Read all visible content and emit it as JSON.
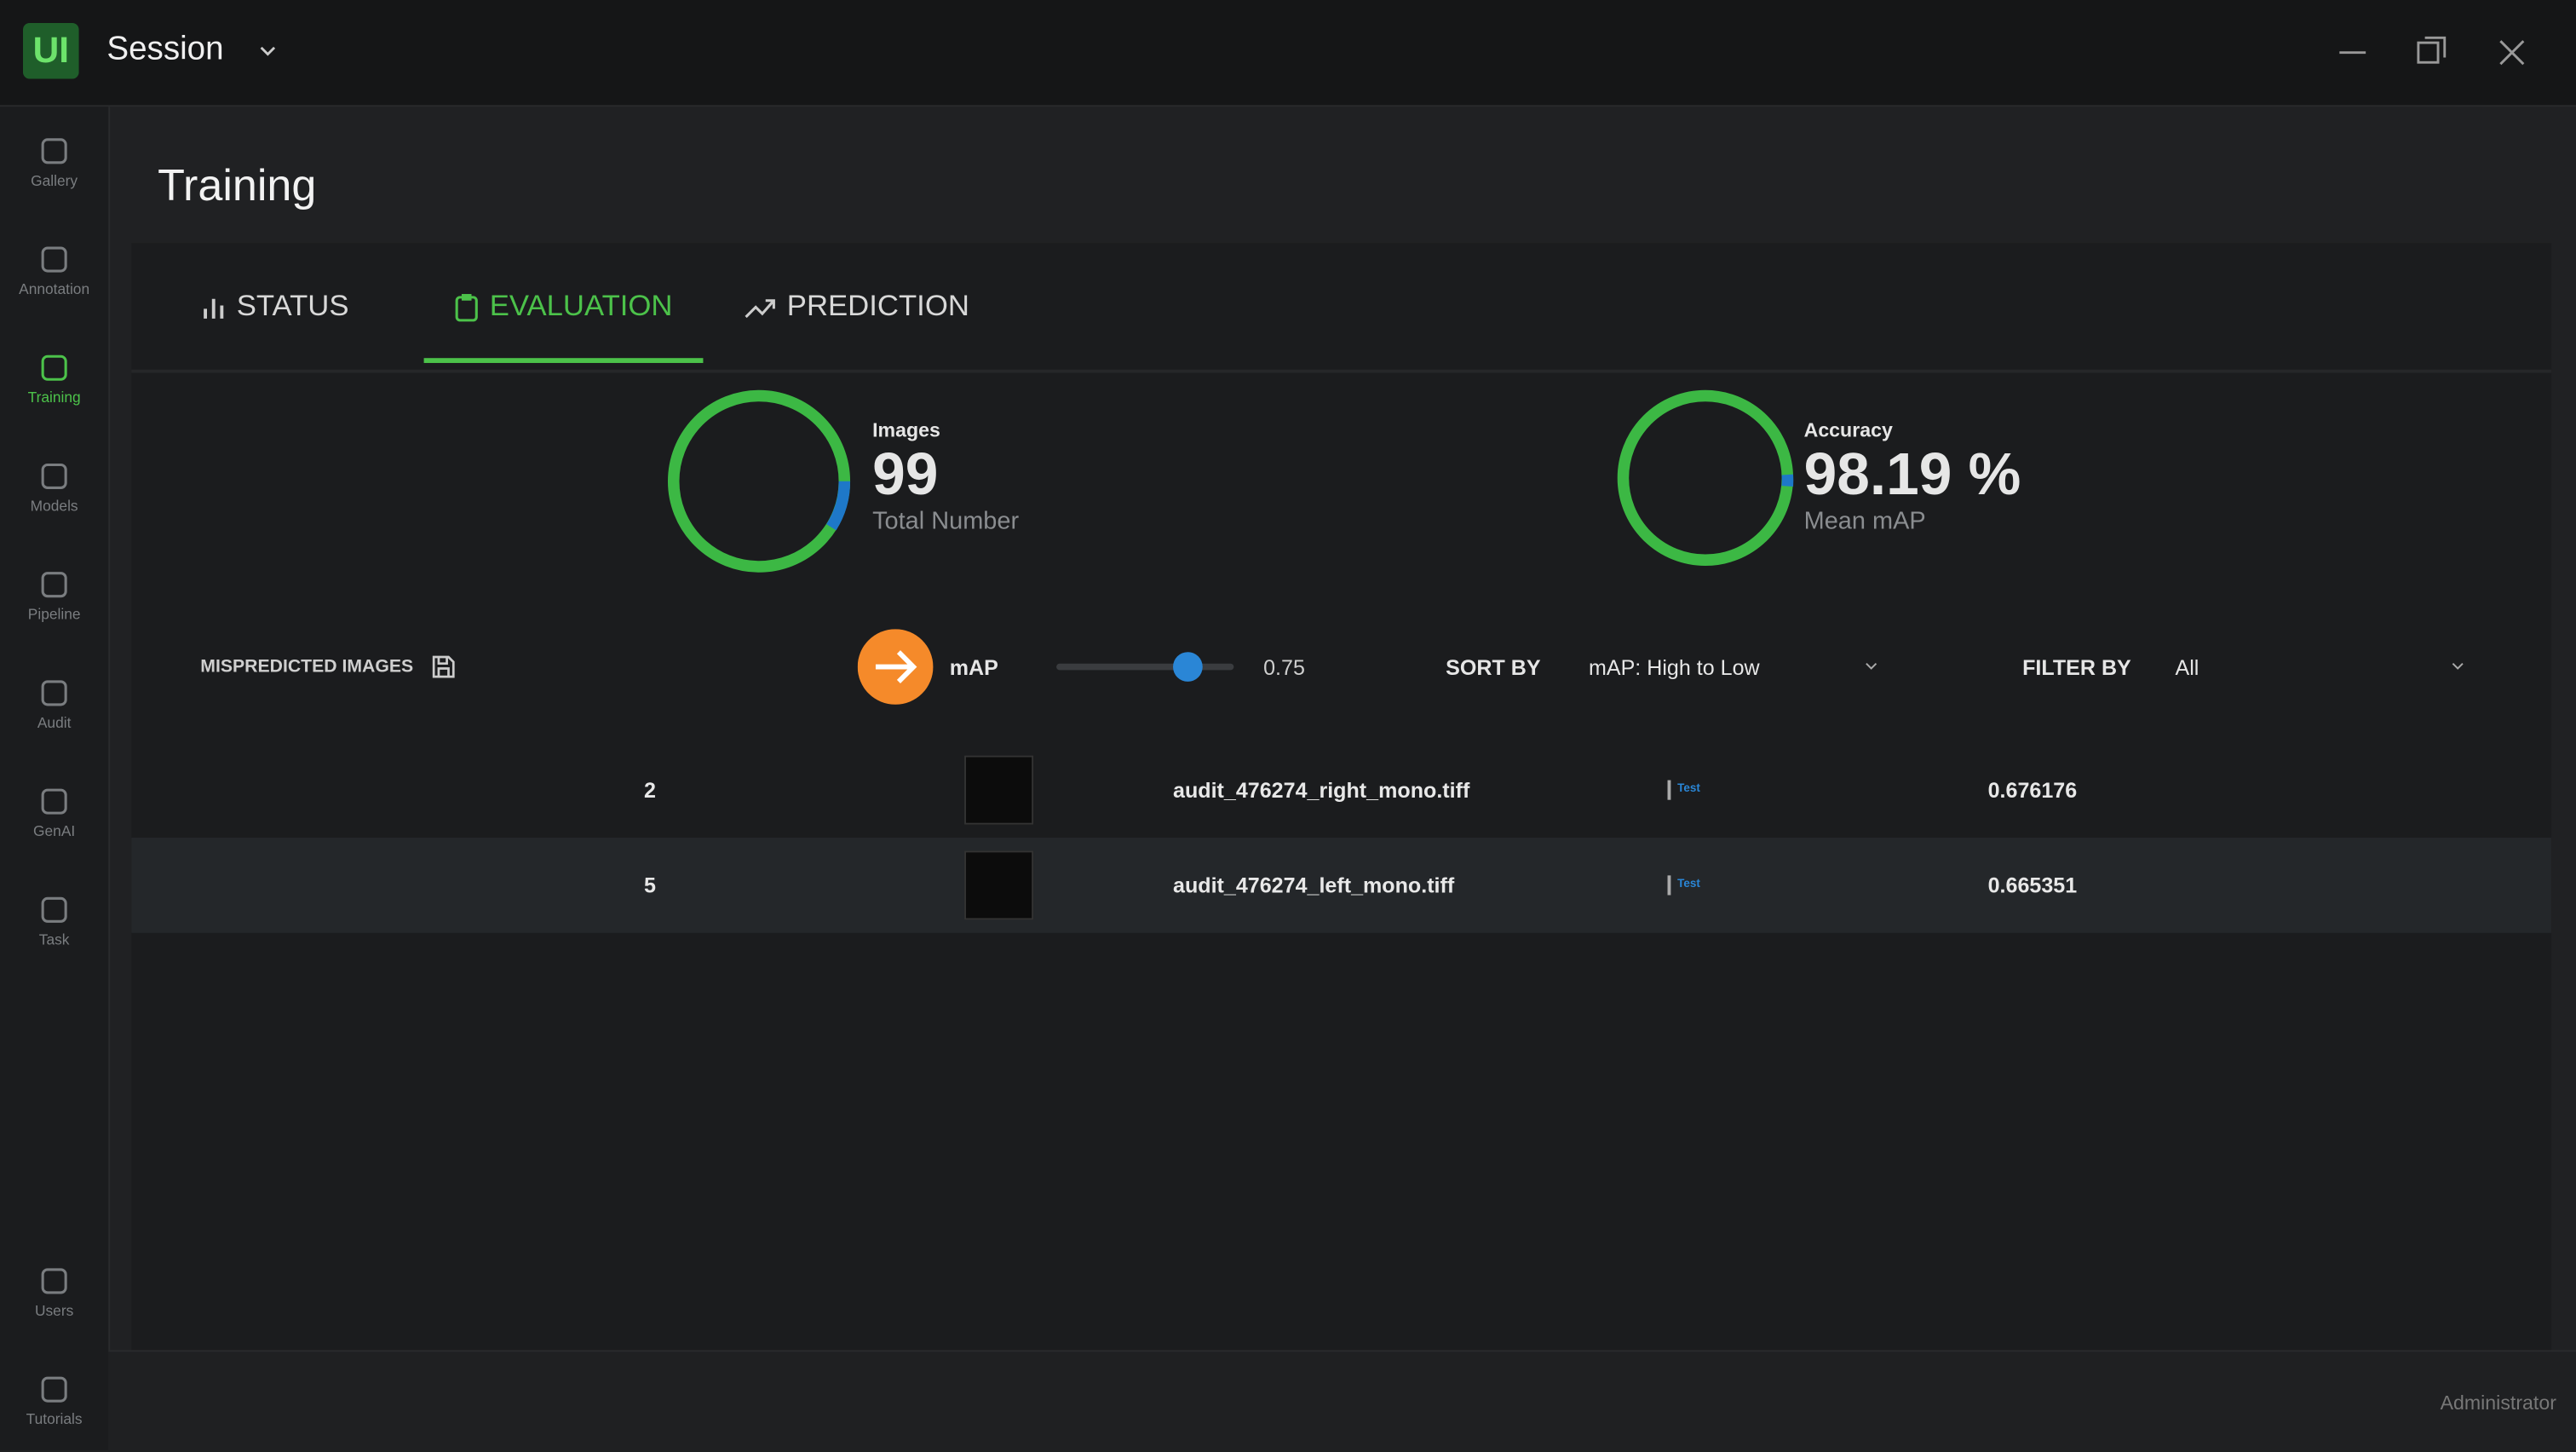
{
  "header": {
    "logo": "UI",
    "title": "Session"
  },
  "sidebar": {
    "items": [
      "Gallery",
      "Annotation",
      "Training",
      "Models",
      "Pipeline",
      "Audit",
      "GenAI",
      "Task"
    ],
    "bottom": [
      "Users",
      "Tutorials"
    ]
  },
  "page": {
    "title": "Training"
  },
  "tabs": [
    "STATUS",
    "EVALUATION",
    "PREDICTION"
  ],
  "stats": [
    {
      "label": "Images",
      "value": "99",
      "caption": "Total Number"
    },
    {
      "label": "Accuracy",
      "value": "98.19 %",
      "caption": "Mean mAP"
    }
  ],
  "controls": {
    "mispredicted": "MISPREDICTED IMAGES",
    "metric": "mAP",
    "threshold": "0.75",
    "sort_label": "SORT BY",
    "sort_value": "mAP: High to Low",
    "filter_label": "FILTER BY",
    "filter_value": "All"
  },
  "table": {
    "rows": [
      [
        "2",
        "audit_476274_right_mono.tiff",
        "Test",
        "0.676176"
      ],
      [
        "5",
        "audit_476274_left_mono.tiff",
        "Test",
        "0.665351"
      ]
    ]
  },
  "footer": {
    "user": "Administrator"
  }
}
